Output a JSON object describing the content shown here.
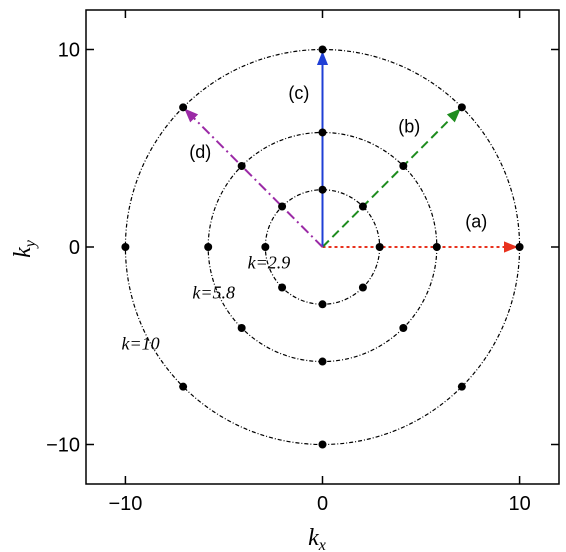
{
  "chart_data": {
    "type": "scatter",
    "title": "",
    "xlabel": {
      "base": "k",
      "sub": "x"
    },
    "ylabel": {
      "base": "k",
      "sub": "y"
    },
    "xlim": [
      -12,
      12
    ],
    "ylim": [
      -12,
      12
    ],
    "xticks": [
      -10,
      0,
      10
    ],
    "yticks": [
      -10,
      0,
      10
    ],
    "xtick_labels": [
      "−10",
      "0",
      "10"
    ],
    "ytick_labels": [
      "−10",
      "0",
      "10"
    ],
    "grid": false,
    "rings": [
      {
        "k": 2.9,
        "label": "k=2.9",
        "label_pos": [
          -3.8,
          -1.1
        ]
      },
      {
        "k": 5.8,
        "label": "k=5.8",
        "label_pos": [
          -6.6,
          -2.6
        ]
      },
      {
        "k": 10,
        "label": "k=10",
        "label_pos": [
          -10.2,
          -5.2
        ]
      }
    ],
    "points_per_ring": 8,
    "arrows": [
      {
        "label": "(a)",
        "angle_deg": 0,
        "length": 10,
        "color": "#e8321e",
        "dash": "3,3",
        "label_pos": [
          7.8,
          1.0
        ]
      },
      {
        "label": "(b)",
        "angle_deg": 45,
        "length": 10,
        "color": "#1e8c1e",
        "dash": "9,5",
        "label_pos": [
          4.4,
          5.8
        ]
      },
      {
        "label": "(c)",
        "angle_deg": 90,
        "length": 10,
        "color": "#1f3fd6",
        "dash": "",
        "label_pos": [
          -1.2,
          7.5
        ]
      },
      {
        "label": "(d)",
        "angle_deg": 135,
        "length": 10,
        "color": "#9b2aa6",
        "dash": "10,4,2,4",
        "label_pos": [
          -6.2,
          4.5
        ]
      }
    ]
  }
}
